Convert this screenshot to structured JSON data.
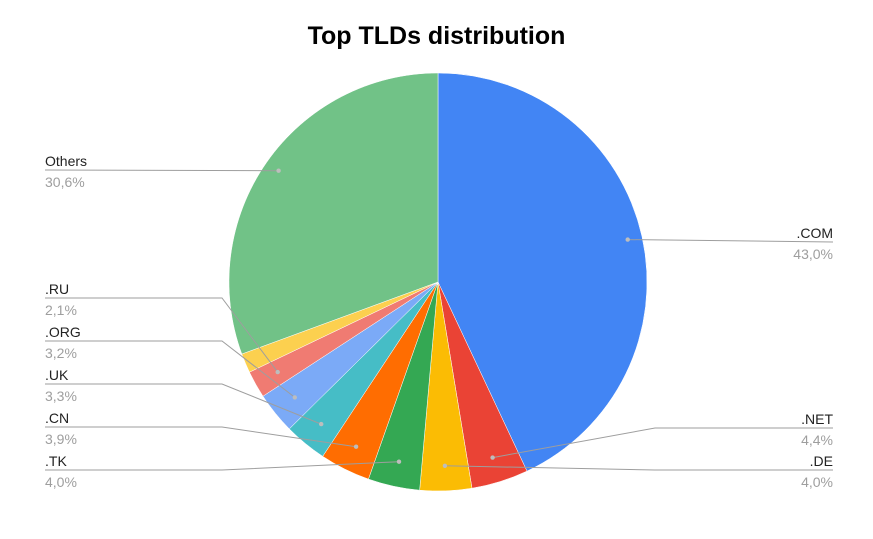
{
  "chart_data": {
    "type": "pie",
    "title": "Top TLDs distribution",
    "start_angle_deg": 0,
    "direction": "clockwise",
    "slices": [
      {
        "label": ".COM",
        "value": 43.0,
        "value_label": "43,0%",
        "color": "#4285f4",
        "label_side": "right"
      },
      {
        "label": ".NET",
        "value": 4.4,
        "value_label": "4,4%",
        "color": "#ea4335",
        "label_side": "right"
      },
      {
        "label": ".DE",
        "value": 4.0,
        "value_label": "4,0%",
        "color": "#fbbc04",
        "label_side": "right"
      },
      {
        "label": ".TK",
        "value": 4.0,
        "value_label": "4,0%",
        "color": "#34a853",
        "label_side": "left"
      },
      {
        "label": ".CN",
        "value": 3.9,
        "value_label": "3,9%",
        "color": "#ff6d01",
        "label_side": "left"
      },
      {
        "label": ".UK",
        "value": 3.3,
        "value_label": "3,3%",
        "color": "#46bdc6",
        "label_side": "left"
      },
      {
        "label": ".ORG",
        "value": 3.2,
        "value_label": "3,2%",
        "color": "#7baaf7",
        "label_side": "left"
      },
      {
        "label": ".RU",
        "value": 2.1,
        "value_label": "2,1%",
        "color": "#f07b72",
        "label_side": "left"
      },
      {
        "label": "",
        "value": 1.5,
        "value_label": "",
        "color": "#fcd04f",
        "label_side": "none"
      },
      {
        "label": "Others",
        "value": 30.6,
        "value_label": "30,6%",
        "color": "#71c287",
        "label_side": "left"
      }
    ]
  }
}
